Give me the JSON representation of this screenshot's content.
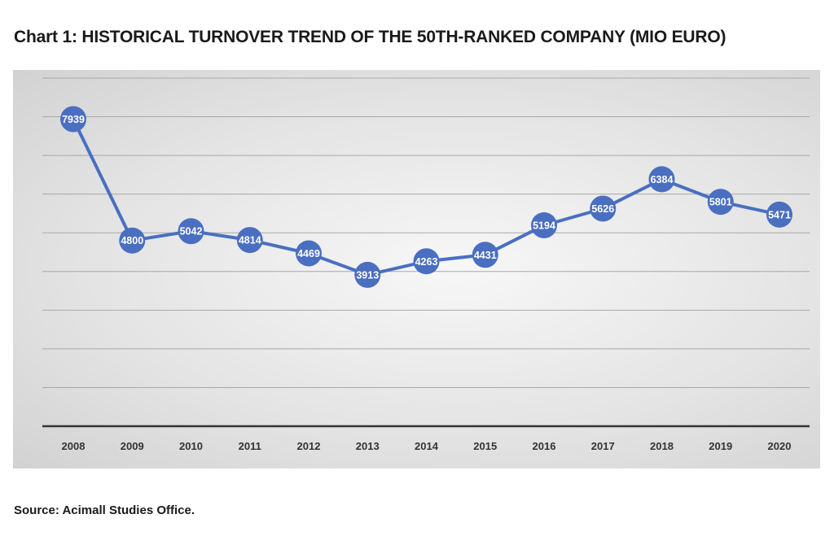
{
  "header": {
    "title": "Chart 1: HISTORICAL TURNOVER TREND OF THE 50TH-RANKED COMPANY (MIO EURO)"
  },
  "footer": {
    "source": "Source: Acimall Studies Office."
  },
  "colors": {
    "line": "#4a6fc0",
    "gridline": "#a8a8a8",
    "axis": "#333333",
    "label": "#ffffff"
  },
  "chart_data": {
    "type": "line",
    "title": "Chart 1: HISTORICAL TURNOVER TREND OF THE 50TH-RANKED COMPANY (MIO EURO)",
    "categories": [
      "2008",
      "2009",
      "2010",
      "2011",
      "2012",
      "2013",
      "2014",
      "2015",
      "2016",
      "2017",
      "2018",
      "2019",
      "2020"
    ],
    "series": [
      {
        "values": [
          7939,
          4800,
          5042,
          4814,
          4469,
          3913,
          4263,
          4431,
          5194,
          5626,
          6384,
          5801,
          5471
        ]
      }
    ],
    "xlabel": "",
    "ylabel": "",
    "ylim": [
      0,
      9000
    ],
    "grid": true,
    "gridlines_every": 1000,
    "data_labels": true,
    "legend": "none",
    "y_tick_labels_shown": false
  }
}
